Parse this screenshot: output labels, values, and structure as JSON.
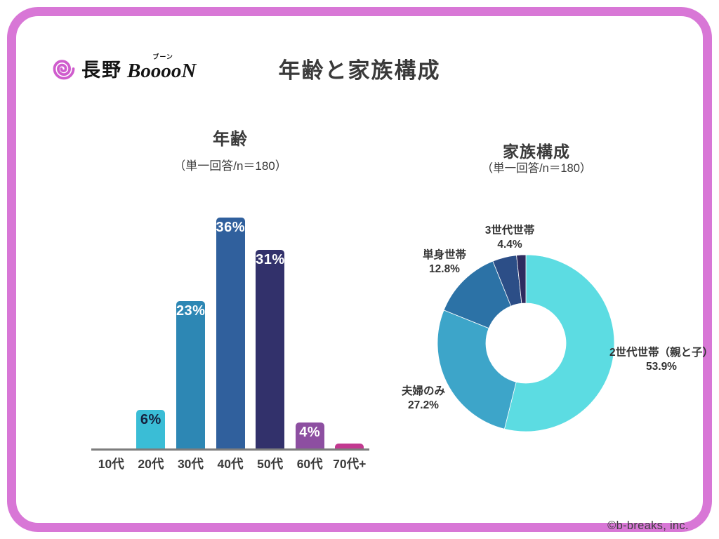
{
  "header": {
    "logo": {
      "icon": "spiral-icon",
      "icon_color": "#cf5ccd",
      "region": "長野",
      "brand": "BooooN",
      "furigana": "ブーン"
    },
    "title": "年齢と家族構成"
  },
  "footer": {
    "copyright": "©b-breaks, inc."
  },
  "colors": {
    "frame_pink": "#d877d6",
    "logo_pink": "#cf5ccd",
    "axis_gray": "#7d7d7d",
    "text_dark": "#3a3a3a"
  },
  "chart_data": [
    {
      "type": "bar",
      "title": "年齢",
      "subtitle": "（単一回答/n＝180）",
      "categories": [
        "10代",
        "20代",
        "30代",
        "40代",
        "50代",
        "60代",
        "70代+"
      ],
      "values": [
        0,
        6,
        23,
        36,
        31,
        4,
        0.8
      ],
      "data_labels": [
        "",
        "6%",
        "23%",
        "36%",
        "31%",
        "4%",
        ""
      ],
      "bar_colors": [
        "#4fc7dd",
        "#3abdd6",
        "#2d87b4",
        "#30609d",
        "#32316b",
        "#8d4fa1",
        "#c23990"
      ],
      "label_colors": [
        "",
        "#16223f",
        "#ffffff",
        "#ffffff",
        "#ffffff",
        "#ffffff",
        ""
      ],
      "xlabel": "",
      "ylabel": "",
      "ylim": [
        0,
        37
      ],
      "grid": false
    },
    {
      "type": "pie",
      "subtype": "donut",
      "title": "家族構成",
      "subtitle": "（単一回答/n＝180）",
      "start_angle_deg": 0,
      "direction": "clockwise",
      "inner_radius_ratio": 0.45,
      "slices": [
        {
          "label": "2世代世帯（親と子）",
          "value": 53.9,
          "pct_label": "53.9%",
          "color": "#5cdce2"
        },
        {
          "label": "夫婦のみ",
          "value": 27.2,
          "pct_label": "27.2%",
          "color": "#3da5c9"
        },
        {
          "label": "単身世帯",
          "value": 12.8,
          "pct_label": "12.8%",
          "color": "#2c72a6"
        },
        {
          "label": "3世代世帯",
          "value": 4.4,
          "pct_label": "4.4%",
          "color": "#2c4e87"
        },
        {
          "label": "",
          "value": 1.7,
          "pct_label": "",
          "color": "#2e2c5f"
        }
      ]
    }
  ]
}
